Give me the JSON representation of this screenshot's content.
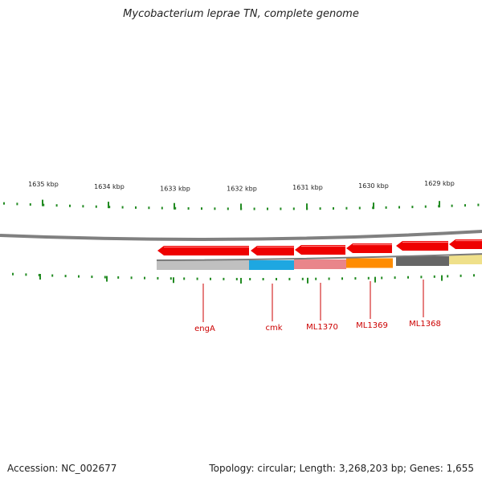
{
  "title": "Mycobacterium leprae TN, complete genome",
  "footer": {
    "accession": "Accession: NC_002677",
    "topology": "Topology: circular; Length: 3,268,203 bp; Genes: 1,655"
  },
  "ruler_labels": [
    "1635 kbp",
    "1634 kbp",
    "1633 kbp",
    "1632 kbp",
    "1631 kbp",
    "1630 kbp",
    "1629 kbp"
  ],
  "genes": [
    {
      "name": "engA",
      "color": "#c0c0c0"
    },
    {
      "name": "cmk",
      "color": "#1ea7e1"
    },
    {
      "name": "ML1370",
      "color": "#e9858a"
    },
    {
      "name": "ML1369",
      "color": "#ff8c00"
    },
    {
      "name": "ML1368",
      "color": "#666666"
    },
    {
      "name": "",
      "color": "#efe08a"
    }
  ],
  "colors": {
    "arrow": "#ee0000",
    "tick": "#228b22",
    "label": "#cc0000",
    "backbone": "#808080"
  }
}
